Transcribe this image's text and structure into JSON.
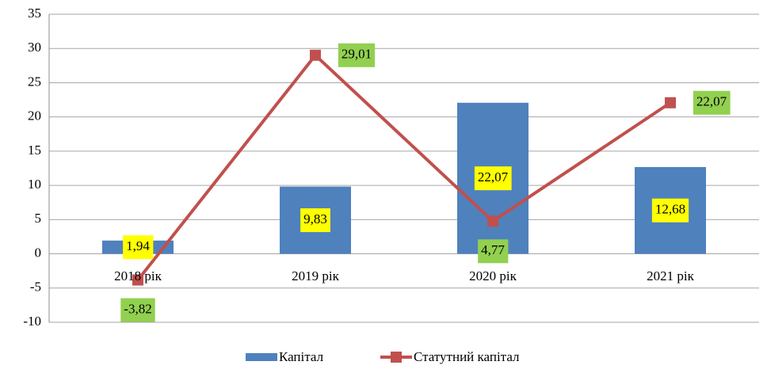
{
  "chart_data": {
    "type": "bar-line",
    "categories": [
      "2018 рік",
      "2019 рік",
      "2020 рік",
      "2021 рік"
    ],
    "series": [
      {
        "name": "Капітал",
        "type": "bar",
        "color": "#4f81bd",
        "values": [
          1.94,
          9.83,
          22.07,
          12.68
        ],
        "value_labels": [
          "1,94",
          "9,83",
          "22,07",
          "12,68"
        ]
      },
      {
        "name": "Статутний капітал",
        "type": "line",
        "color": "#c0504d",
        "values": [
          -3.82,
          29.01,
          4.77,
          22.07
        ],
        "value_labels": [
          "-3,82",
          "29,01",
          "4,77",
          "22,07"
        ]
      }
    ],
    "ylim": [
      -10,
      35
    ],
    "yticks": [
      -10,
      -5,
      0,
      5,
      10,
      15,
      20,
      25,
      30,
      35
    ],
    "grid": true,
    "legend": "bottom"
  }
}
